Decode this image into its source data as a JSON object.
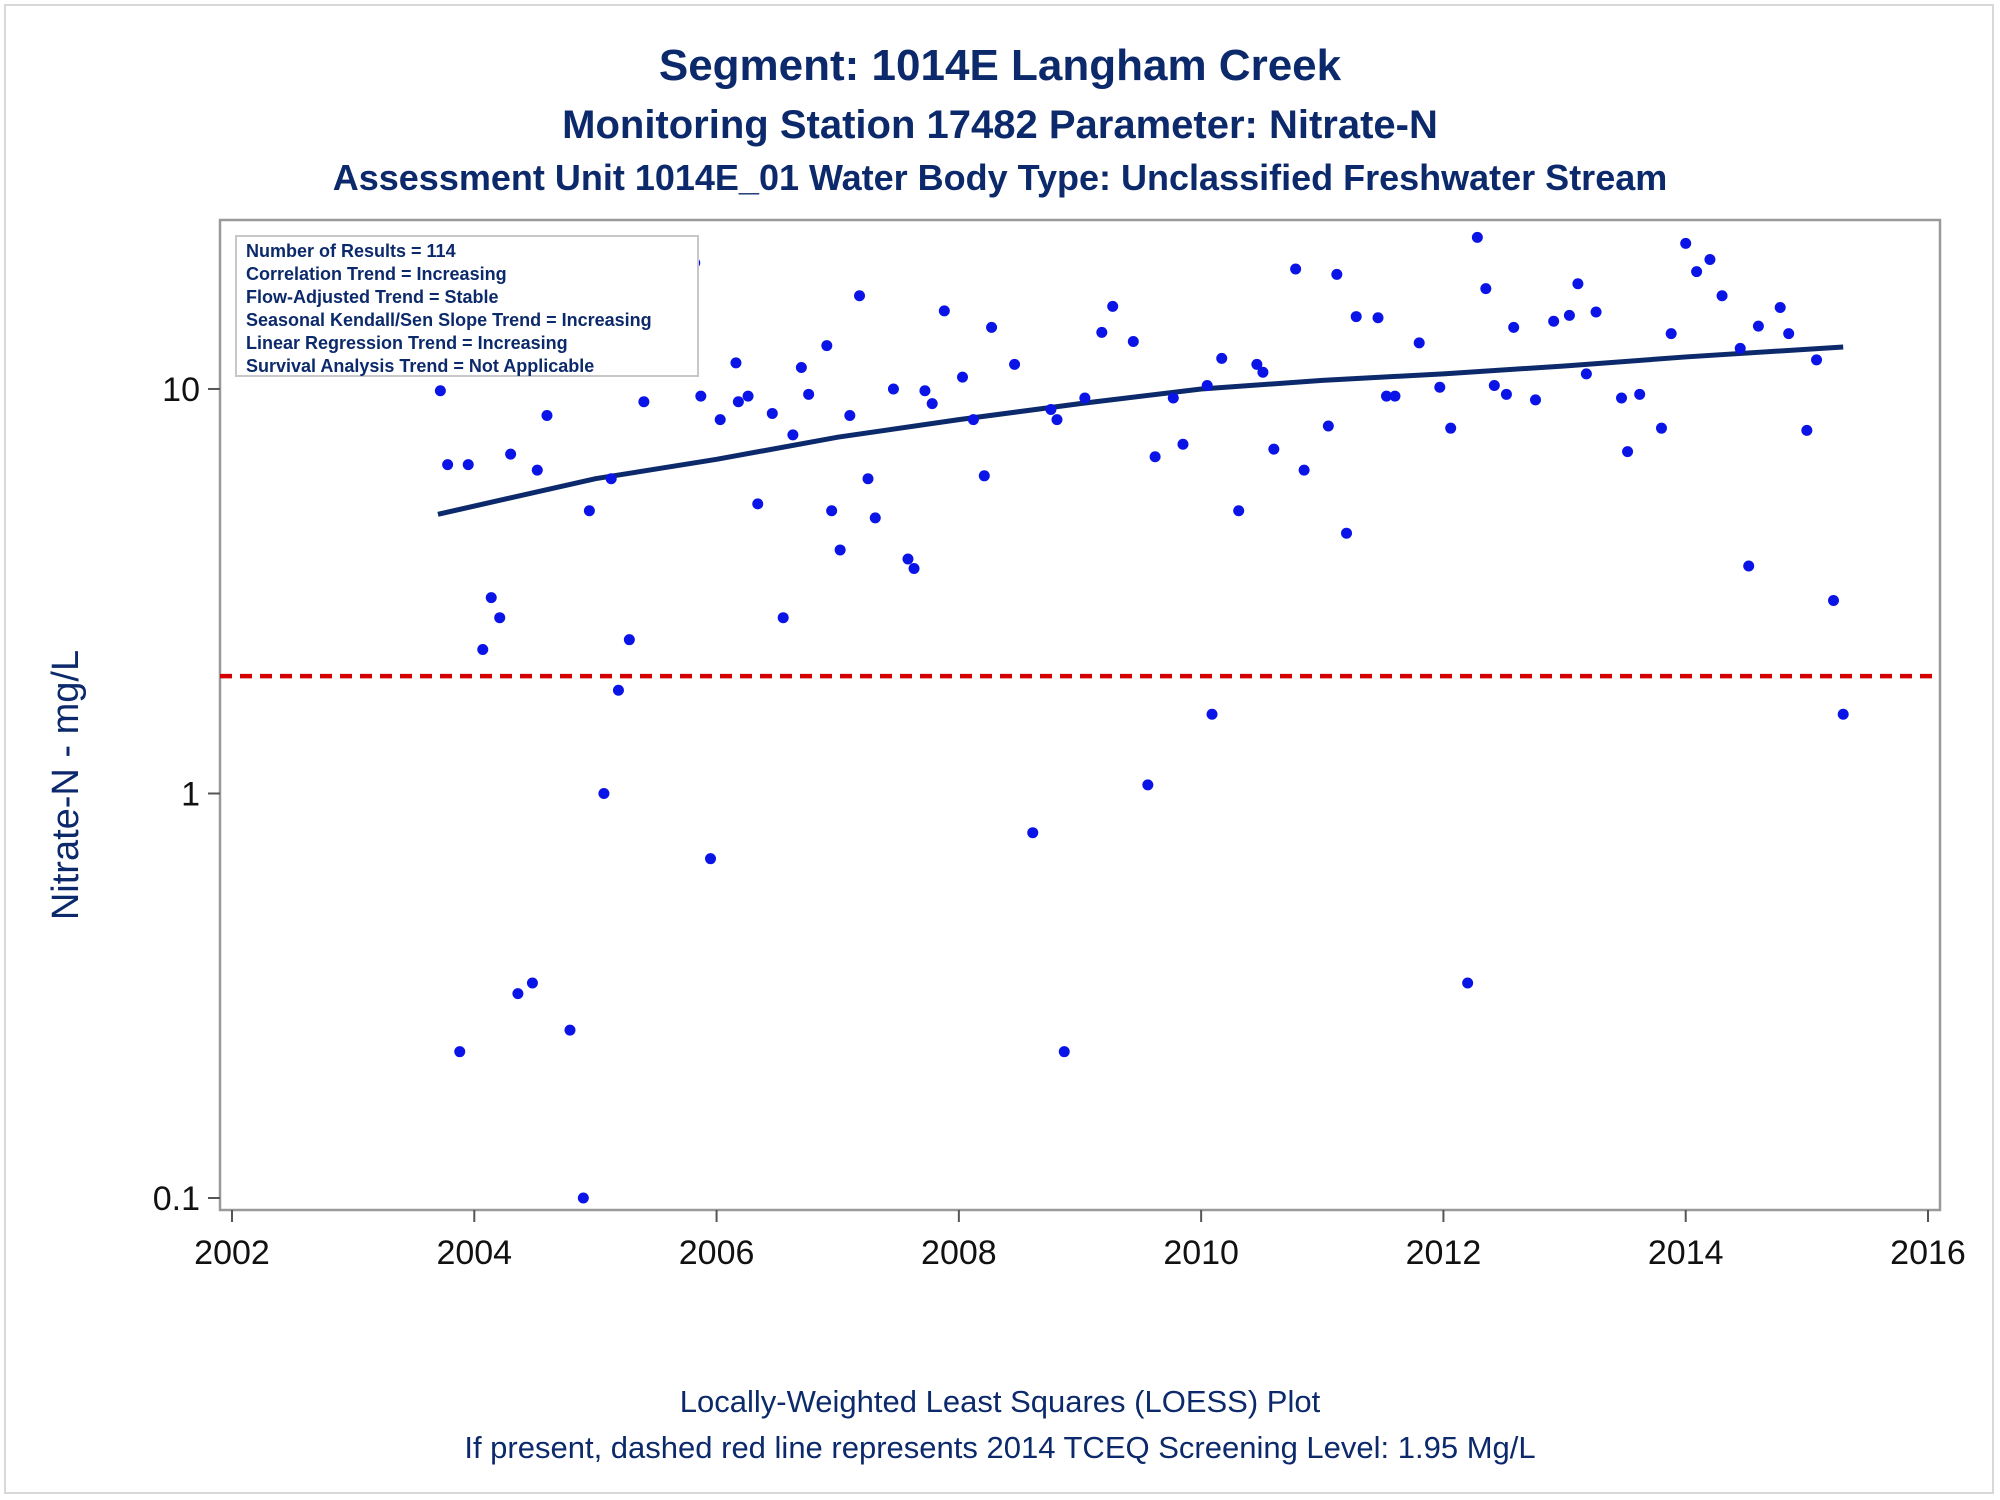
{
  "chart_data": {
    "type": "scatter",
    "title": "Segment: 1014E  Langham Creek",
    "subtitle": "Monitoring Station 17482 Parameter: Nitrate-N",
    "subtitle2": "Assessment Unit 1014E_01   Water Body Type: Unclassified Freshwater Stream",
    "xlabel": "",
    "ylabel": "Nitrate-N - mg/L",
    "y_scale": "log",
    "xlim": [
      2002,
      2016
    ],
    "ylim": [
      0.1,
      25
    ],
    "x_ticks": [
      2002,
      2004,
      2006,
      2008,
      2010,
      2012,
      2014,
      2016
    ],
    "y_ticks": [
      0.1,
      1,
      10
    ],
    "x_tick_labels": [
      "2002",
      "2004",
      "2006",
      "2008",
      "2010",
      "2012",
      "2014",
      "2016"
    ],
    "y_tick_labels": [
      "0.1",
      "1",
      "10"
    ],
    "reference_line": {
      "y": 1.95,
      "style": "dashed",
      "color": "#d40000"
    },
    "trend_line": {
      "color": "#0c2a6b",
      "points": [
        [
          2003.7,
          4.9
        ],
        [
          2005.0,
          6.0
        ],
        [
          2006.0,
          6.7
        ],
        [
          2007.0,
          7.6
        ],
        [
          2008.0,
          8.4
        ],
        [
          2009.0,
          9.2
        ],
        [
          2010.0,
          10.0
        ],
        [
          2011.0,
          10.5
        ],
        [
          2012.0,
          10.9
        ],
        [
          2013.0,
          11.4
        ],
        [
          2014.0,
          12.0
        ],
        [
          2015.3,
          12.7
        ]
      ]
    },
    "points_color": "#0a14e6",
    "points": [
      [
        2003.72,
        9.9
      ],
      [
        2003.78,
        6.5
      ],
      [
        2003.88,
        0.23
      ],
      [
        2003.95,
        6.5
      ],
      [
        2004.07,
        2.27
      ],
      [
        2004.14,
        3.05
      ],
      [
        2004.21,
        2.72
      ],
      [
        2004.3,
        6.9
      ],
      [
        2004.36,
        0.32
      ],
      [
        2004.48,
        0.34
      ],
      [
        2004.52,
        6.3
      ],
      [
        2004.6,
        8.6
      ],
      [
        2004.74,
        13.0
      ],
      [
        2004.79,
        0.26
      ],
      [
        2004.9,
        0.1
      ],
      [
        2004.95,
        5.0
      ],
      [
        2005.07,
        1.0
      ],
      [
        2005.13,
        6.0
      ],
      [
        2005.19,
        1.8
      ],
      [
        2005.28,
        2.4
      ],
      [
        2005.4,
        9.3
      ],
      [
        2005.72,
        11.2
      ],
      [
        2005.82,
        20.5
      ],
      [
        2005.87,
        9.6
      ],
      [
        2005.95,
        0.69
      ],
      [
        2006.03,
        8.4
      ],
      [
        2006.16,
        11.6
      ],
      [
        2006.18,
        9.3
      ],
      [
        2006.26,
        9.6
      ],
      [
        2006.34,
        5.2
      ],
      [
        2006.46,
        8.7
      ],
      [
        2006.55,
        2.72
      ],
      [
        2006.63,
        7.7
      ],
      [
        2006.7,
        11.3
      ],
      [
        2006.76,
        9.7
      ],
      [
        2006.91,
        12.8
      ],
      [
        2006.95,
        5.0
      ],
      [
        2007.02,
        4.0
      ],
      [
        2007.1,
        8.6
      ],
      [
        2007.18,
        17.0
      ],
      [
        2007.25,
        6.0
      ],
      [
        2007.31,
        4.8
      ],
      [
        2007.46,
        10.0
      ],
      [
        2007.58,
        3.8
      ],
      [
        2007.63,
        3.6
      ],
      [
        2007.72,
        9.9
      ],
      [
        2007.78,
        9.2
      ],
      [
        2007.88,
        15.6
      ],
      [
        2008.03,
        10.7
      ],
      [
        2008.12,
        8.4
      ],
      [
        2008.21,
        6.1
      ],
      [
        2008.27,
        14.2
      ],
      [
        2008.46,
        11.5
      ],
      [
        2008.61,
        0.8
      ],
      [
        2008.76,
        8.9
      ],
      [
        2008.81,
        8.4
      ],
      [
        2008.87,
        0.23
      ],
      [
        2009.04,
        9.5
      ],
      [
        2009.18,
        13.8
      ],
      [
        2009.27,
        16.0
      ],
      [
        2009.44,
        13.1
      ],
      [
        2009.56,
        1.05
      ],
      [
        2009.62,
        6.8
      ],
      [
        2009.77,
        9.5
      ],
      [
        2009.85,
        7.3
      ],
      [
        2010.05,
        10.2
      ],
      [
        2010.09,
        1.57
      ],
      [
        2010.17,
        11.9
      ],
      [
        2010.31,
        5.0
      ],
      [
        2010.46,
        11.5
      ],
      [
        2010.51,
        11.0
      ],
      [
        2010.6,
        7.1
      ],
      [
        2010.78,
        19.8
      ],
      [
        2010.85,
        6.3
      ],
      [
        2011.05,
        8.1
      ],
      [
        2011.12,
        19.2
      ],
      [
        2011.2,
        4.4
      ],
      [
        2011.28,
        15.1
      ],
      [
        2011.46,
        15.0
      ],
      [
        2011.53,
        9.6
      ],
      [
        2011.6,
        9.6
      ],
      [
        2011.8,
        13.0
      ],
      [
        2011.97,
        10.1
      ],
      [
        2012.06,
        8.0
      ],
      [
        2012.2,
        0.34
      ],
      [
        2012.28,
        23.7
      ],
      [
        2012.35,
        17.7
      ],
      [
        2012.42,
        10.2
      ],
      [
        2012.52,
        9.7
      ],
      [
        2012.58,
        14.2
      ],
      [
        2012.76,
        9.4
      ],
      [
        2012.91,
        14.7
      ],
      [
        2013.04,
        15.2
      ],
      [
        2013.11,
        18.2
      ],
      [
        2013.18,
        10.9
      ],
      [
        2013.26,
        15.5
      ],
      [
        2013.47,
        9.5
      ],
      [
        2013.52,
        7.0
      ],
      [
        2013.62,
        9.7
      ],
      [
        2013.8,
        8.0
      ],
      [
        2013.88,
        13.7
      ],
      [
        2014.0,
        22.9
      ],
      [
        2014.09,
        19.5
      ],
      [
        2014.2,
        20.9
      ],
      [
        2014.3,
        17.0
      ],
      [
        2014.45,
        12.6
      ],
      [
        2014.52,
        3.65
      ],
      [
        2014.6,
        14.3
      ],
      [
        2014.78,
        15.9
      ],
      [
        2014.85,
        13.7
      ],
      [
        2015.0,
        7.9
      ],
      [
        2015.08,
        11.8
      ],
      [
        2015.22,
        3.0
      ],
      [
        2015.3,
        1.57
      ]
    ],
    "inset": [
      "Number of Results = 114",
      "Correlation Trend = Increasing",
      "Flow-Adjusted Trend = Stable",
      "Seasonal Kendall/Sen Slope Trend = Increasing",
      "Linear Regression Trend = Increasing",
      "Survival Analysis Trend = Not Applicable"
    ],
    "footnote1": "Locally-Weighted Least Squares (LOESS) Plot",
    "footnote2": "If present, dashed red line represents 2014 TCEQ Screening Level: 1.95 Mg/L"
  }
}
